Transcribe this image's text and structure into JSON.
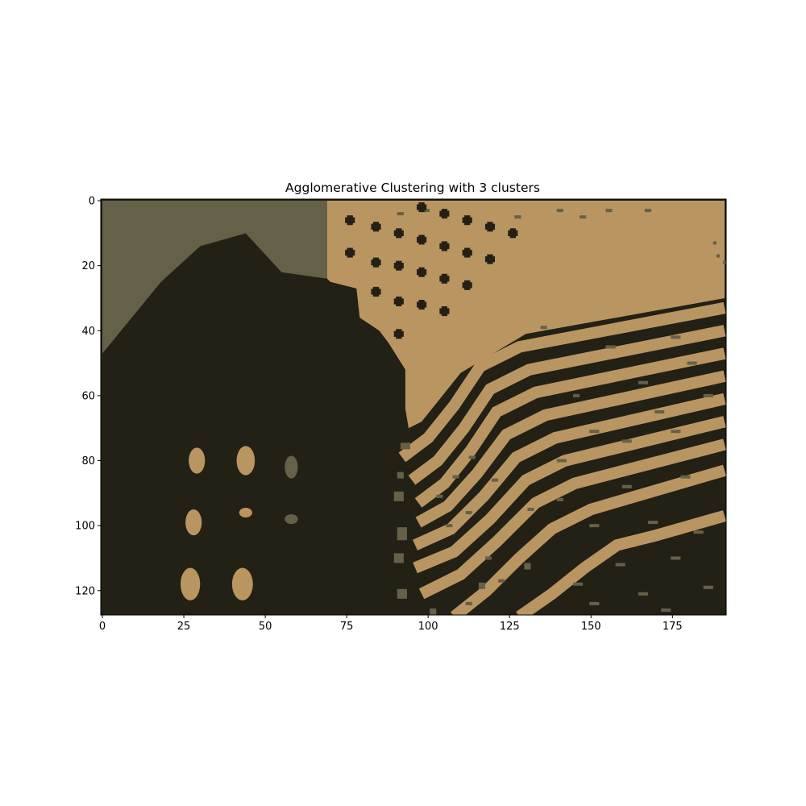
{
  "chart_data": {
    "type": "heatmap",
    "title": "Agglomerative Clustering with 3 clusters",
    "xlabel": "",
    "ylabel": "",
    "image_width": 192,
    "image_height": 128,
    "xlim": [
      -0.5,
      191.5
    ],
    "ylim": [
      127.5,
      -0.5
    ],
    "x_ticks": [
      0,
      25,
      50,
      75,
      100,
      125,
      150,
      175
    ],
    "y_ticks": [
      0,
      20,
      40,
      60,
      80,
      100,
      120
    ],
    "x_tick_labels": [
      "0",
      "25",
      "50",
      "75",
      "100",
      "125",
      "150",
      "175"
    ],
    "y_tick_labels": [
      "0",
      "20",
      "40",
      "60",
      "80",
      "100",
      "120"
    ],
    "grid": false,
    "legend": "none",
    "clusters": [
      {
        "id": 0,
        "color": "#232015"
      },
      {
        "id": 1,
        "color": "#656149"
      },
      {
        "id": 2,
        "color": "#b99661"
      }
    ],
    "regions": {
      "olive_top_left": {
        "cluster": 1,
        "boundary": [
          [
            0,
            0
          ],
          [
            69,
            0
          ],
          [
            69,
            24
          ],
          [
            55,
            22
          ],
          [
            44,
            10
          ],
          [
            30,
            14
          ],
          [
            18,
            25
          ],
          [
            0,
            47
          ]
        ]
      },
      "tan_upper_right": {
        "cluster": 2,
        "boundary": [
          [
            69,
            0
          ],
          [
            191,
            0
          ],
          [
            191,
            30
          ],
          [
            130,
            41
          ],
          [
            110,
            53
          ],
          [
            98,
            68
          ],
          [
            94,
            70
          ],
          [
            93,
            64
          ],
          [
            93,
            52
          ],
          [
            88,
            44
          ],
          [
            85,
            40
          ],
          [
            79,
            36
          ],
          [
            78,
            27
          ],
          [
            70,
            25
          ],
          [
            69,
            24
          ]
        ]
      },
      "stripes": {
        "cluster": 2,
        "count": 9,
        "width": 3.6,
        "curves": [
          [
            [
              92,
              79
            ],
            [
              100,
              73
            ],
            [
              108,
              63
            ],
            [
              116,
              51
            ],
            [
              128,
              45
            ],
            [
              191,
              33
            ]
          ],
          [
            [
              95,
              86
            ],
            [
              103,
              80
            ],
            [
              111,
              70
            ],
            [
              119,
              58
            ],
            [
              131,
              52
            ],
            [
              191,
              40
            ]
          ],
          [
            [
              97,
              93
            ],
            [
              105,
              87
            ],
            [
              113,
              77
            ],
            [
              121,
              65
            ],
            [
              133,
              59
            ],
            [
              191,
              47
            ]
          ],
          [
            [
              97,
              99
            ],
            [
              106,
              94
            ],
            [
              115,
              84
            ],
            [
              124,
              72
            ],
            [
              136,
              66
            ],
            [
              191,
              54
            ]
          ],
          [
            [
              96,
              106
            ],
            [
              107,
              101
            ],
            [
              117,
              91
            ],
            [
              127,
              79
            ],
            [
              139,
              73
            ],
            [
              191,
              61
            ]
          ],
          [
            [
              96,
              113
            ],
            [
              108,
              108
            ],
            [
              119,
              98
            ],
            [
              130,
              86
            ],
            [
              142,
              80
            ],
            [
              191,
              68
            ]
          ],
          [
            [
              98,
              121
            ],
            [
              110,
              115
            ],
            [
              121,
              105
            ],
            [
              133,
              93
            ],
            [
              145,
              87
            ],
            [
              191,
              75
            ]
          ],
          [
            [
              108,
              128
            ],
            [
              118,
              120
            ],
            [
              128,
              110
            ],
            [
              138,
              101
            ],
            [
              150,
              95
            ],
            [
              191,
              83
            ]
          ],
          [
            [
              128,
              128
            ],
            [
              138,
              121
            ],
            [
              148,
              113
            ],
            [
              158,
              106
            ],
            [
              170,
              103
            ],
            [
              191,
              97
            ]
          ]
        ]
      },
      "olive_speckles": {
        "cluster": 1,
        "points": [
          [
            92,
            75,
            3,
            2
          ],
          [
            91,
            84,
            2,
            2
          ],
          [
            90,
            90,
            3,
            3
          ],
          [
            91,
            101,
            3,
            4
          ],
          [
            90,
            109,
            3,
            3
          ],
          [
            91,
            120,
            3,
            3
          ],
          [
            101,
            126,
            2,
            2
          ],
          [
            116,
            118,
            2,
            2
          ],
          [
            130,
            112,
            2,
            2
          ],
          [
            103,
            91,
            2,
            1
          ],
          [
            108,
            85,
            2,
            1
          ],
          [
            113,
            79,
            2,
            1
          ],
          [
            106,
            100,
            2,
            1
          ],
          [
            112,
            96,
            2,
            1
          ],
          [
            120,
            86,
            2,
            1
          ],
          [
            140,
            80,
            3,
            1
          ],
          [
            160,
            74,
            3,
            1
          ],
          [
            175,
            71,
            3,
            1
          ],
          [
            185,
            60,
            3,
            1
          ],
          [
            170,
            65,
            3,
            1
          ],
          [
            150,
            71,
            3,
            1
          ],
          [
            145,
            60,
            2,
            1
          ],
          [
            165,
            56,
            3,
            1
          ],
          [
            180,
            50,
            3,
            1
          ],
          [
            155,
            45,
            3,
            1
          ],
          [
            175,
            42,
            3,
            1
          ],
          [
            135,
            39,
            2,
            1
          ],
          [
            131,
            95,
            2,
            1
          ],
          [
            118,
            110,
            2,
            1
          ],
          [
            140,
            92,
            2,
            1
          ],
          [
            160,
            88,
            3,
            1
          ],
          [
            178,
            85,
            3,
            1
          ],
          [
            150,
            100,
            3,
            1
          ],
          [
            168,
            99,
            3,
            1
          ],
          [
            182,
            102,
            3,
            1
          ],
          [
            158,
            112,
            3,
            1
          ],
          [
            175,
            110,
            3,
            1
          ],
          [
            145,
            118,
            3,
            1
          ],
          [
            165,
            121,
            3,
            1
          ],
          [
            185,
            119,
            3,
            1
          ],
          [
            122,
            117,
            2,
            1
          ],
          [
            112,
            124,
            2,
            1
          ],
          [
            150,
            124,
            3,
            1
          ],
          [
            172,
            126,
            3,
            1
          ],
          [
            91,
            4,
            2,
            1
          ],
          [
            99,
            3,
            2,
            1
          ],
          [
            127,
            5,
            2,
            1
          ],
          [
            140,
            3,
            2,
            1
          ],
          [
            147,
            5,
            2,
            1
          ],
          [
            155,
            3,
            2,
            1
          ],
          [
            167,
            3,
            2,
            1
          ],
          [
            188,
            13,
            1,
            1
          ],
          [
            189,
            17,
            1,
            1
          ],
          [
            191,
            19,
            1,
            1
          ]
        ]
      },
      "dark_dots_top": {
        "cluster": 0,
        "points": [
          [
            76,
            6
          ],
          [
            84,
            8
          ],
          [
            91,
            10
          ],
          [
            98,
            12
          ],
          [
            105,
            14
          ],
          [
            112,
            16
          ],
          [
            119,
            18
          ],
          [
            76,
            16
          ],
          [
            84,
            19
          ],
          [
            91,
            20
          ],
          [
            98,
            22
          ],
          [
            105,
            24
          ],
          [
            112,
            26
          ],
          [
            84,
            28
          ],
          [
            91,
            31
          ],
          [
            98,
            32
          ],
          [
            105,
            34
          ],
          [
            91,
            41
          ],
          [
            98,
            2
          ],
          [
            105,
            4
          ],
          [
            112,
            6
          ],
          [
            119,
            8
          ],
          [
            126,
            10
          ]
        ]
      },
      "tan_blobs_bottom_left": {
        "cluster": 2,
        "blobs": [
          [
            29,
            80,
            2.5,
            4
          ],
          [
            44,
            80,
            2.8,
            4.5
          ],
          [
            28,
            99,
            2.5,
            4
          ],
          [
            44,
            96,
            2,
            1.5
          ],
          [
            27,
            118,
            3,
            5
          ],
          [
            43,
            118,
            3.2,
            5
          ]
        ]
      },
      "olive_blobs_bottom_left": {
        "cluster": 1,
        "blobs": [
          [
            58,
            82,
            2,
            3.5
          ],
          [
            58,
            98,
            2,
            1.5
          ]
        ]
      }
    }
  }
}
